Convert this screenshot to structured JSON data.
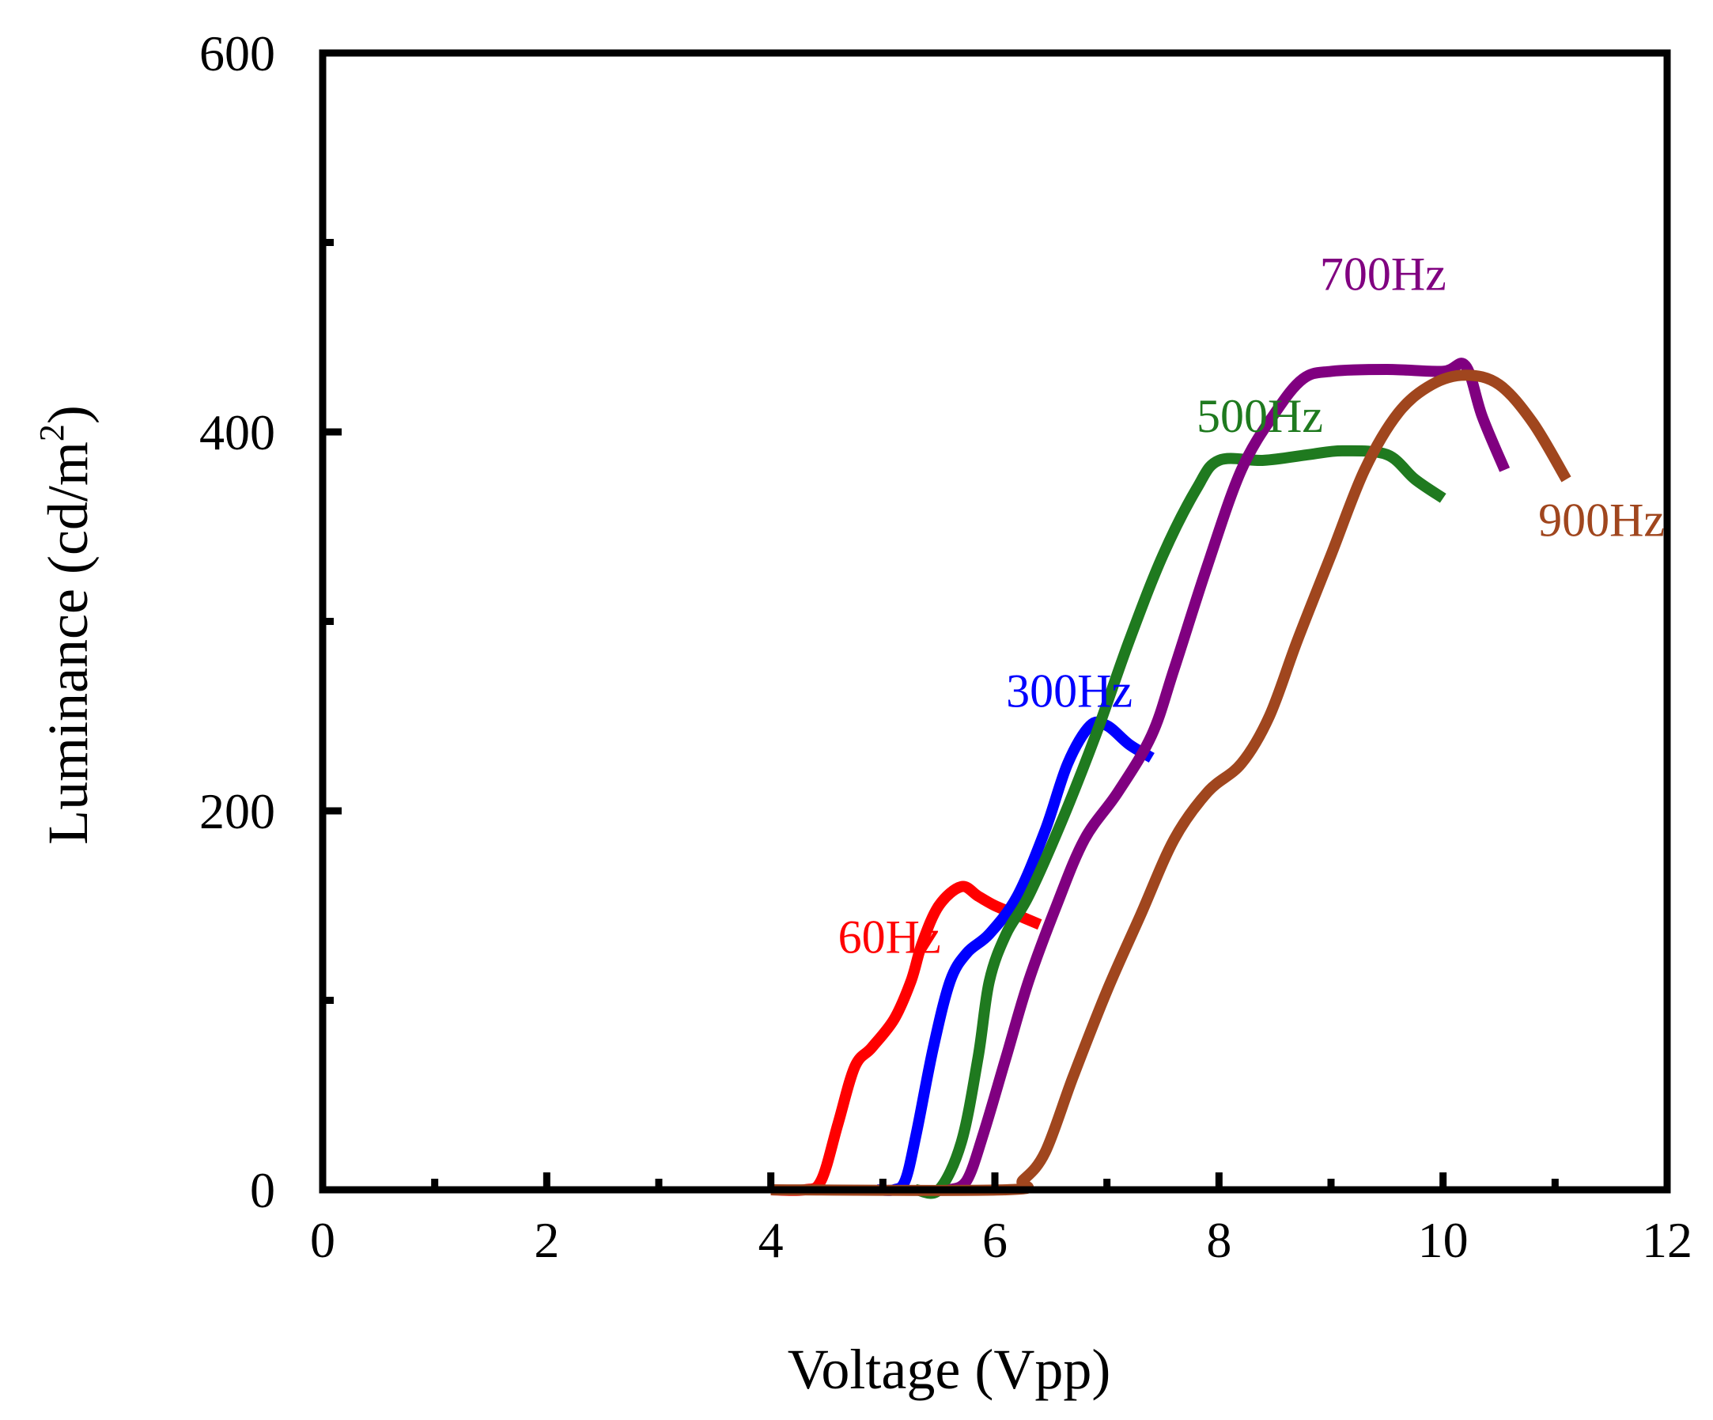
{
  "chart_data": {
    "type": "line",
    "title": "",
    "xlabel": "Voltage (Vpp)",
    "ylabel_main": "Luminance (cd/m",
    "ylabel_sup": "2",
    "ylabel_end": ")",
    "xlim": [
      0,
      12
    ],
    "ylim": [
      0,
      600
    ],
    "x_ticks": [
      0,
      2,
      4,
      6,
      8,
      10,
      12
    ],
    "x_tick_labels": [
      "0",
      "2",
      "4",
      "6",
      "8",
      "10",
      "12"
    ],
    "x_minor_ticks": [
      1,
      3,
      5,
      7,
      9,
      11
    ],
    "y_ticks": [
      0,
      200,
      400,
      600
    ],
    "y_tick_labels": [
      "0",
      "200",
      "400",
      "600"
    ],
    "y_minor_ticks": [
      100,
      300,
      500
    ],
    "grid": false,
    "series": [
      {
        "name": "60Hz",
        "color": "#ff0000",
        "label_pos": [
          4.6,
          125
        ],
        "x": [
          4.0,
          4.3,
          4.45,
          4.6,
          4.75,
          4.9,
          5.1,
          5.25,
          5.35,
          5.5,
          5.7,
          5.85,
          6.0,
          6.2,
          6.4
        ],
        "y": [
          0,
          0,
          5,
          35,
          65,
          75,
          90,
          110,
          130,
          150,
          160,
          155,
          150,
          145,
          140
        ]
      },
      {
        "name": "300Hz",
        "color": "#0000ff",
        "label_pos": [
          6.1,
          255
        ],
        "x": [
          4.95,
          5.1,
          5.2,
          5.3,
          5.45,
          5.6,
          5.75,
          5.95,
          6.2,
          6.45,
          6.65,
          6.85,
          7.0,
          7.2,
          7.4
        ],
        "y": [
          0,
          0,
          5,
          30,
          75,
          110,
          125,
          135,
          155,
          190,
          225,
          245,
          245,
          235,
          228
        ]
      },
      {
        "name": "500Hz",
        "color": "#1f7a1f",
        "label_pos": [
          7.8,
          400
        ],
        "x": [
          5.3,
          5.5,
          5.7,
          5.85,
          5.95,
          6.1,
          6.3,
          6.6,
          6.9,
          7.2,
          7.5,
          7.8,
          8.0,
          8.4,
          8.8,
          9.1,
          9.5,
          9.75,
          10.0
        ],
        "y": [
          0,
          0,
          25,
          70,
          110,
          135,
          155,
          195,
          240,
          290,
          335,
          370,
          385,
          385,
          388,
          390,
          388,
          375,
          365
        ]
      },
      {
        "name": "700Hz",
        "color": "#800080",
        "label_pos": [
          8.9,
          475
        ],
        "x": [
          5.6,
          5.75,
          5.9,
          6.1,
          6.3,
          6.55,
          6.8,
          7.1,
          7.4,
          7.6,
          7.9,
          8.2,
          8.5,
          8.75,
          9.0,
          9.5,
          10.0,
          10.2,
          10.35,
          10.55
        ],
        "y": [
          0,
          5,
          30,
          70,
          110,
          150,
          185,
          210,
          240,
          275,
          330,
          380,
          410,
          428,
          432,
          433,
          432,
          435,
          408,
          380
        ]
      },
      {
        "name": "900Hz",
        "color": "#a0461e",
        "label_pos": [
          10.85,
          345
        ],
        "x": [
          4.0,
          6.1,
          6.25,
          6.45,
          6.7,
          7.0,
          7.3,
          7.6,
          7.9,
          8.2,
          8.45,
          8.7,
          9.0,
          9.3,
          9.6,
          9.9,
          10.2,
          10.5,
          10.8,
          11.1
        ],
        "y": [
          0,
          0,
          5,
          20,
          60,
          105,
          145,
          185,
          210,
          225,
          250,
          290,
          335,
          380,
          410,
          425,
          430,
          425,
          405,
          375
        ]
      }
    ]
  }
}
